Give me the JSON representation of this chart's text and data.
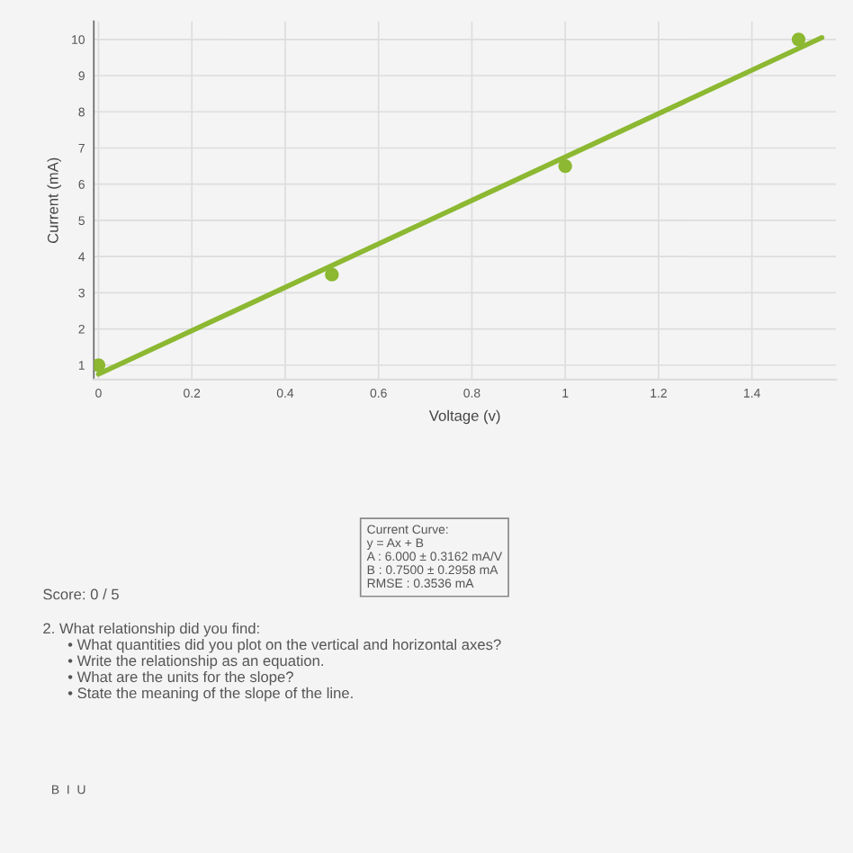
{
  "chart_data": {
    "type": "scatter",
    "xlabel": "Voltage (v)",
    "ylabel": "Current (mA)",
    "xlim": [
      -0.01,
      1.58
    ],
    "ylim": [
      0.6,
      10.5
    ],
    "xticks": [
      0,
      0.2,
      0.4,
      0.6,
      0.8,
      1,
      1.2,
      1.4
    ],
    "yticks": [
      1,
      2,
      3,
      4,
      5,
      6,
      7,
      8,
      9,
      10
    ],
    "grid": true,
    "marker": "circle",
    "series": [
      {
        "color": "#8cb832",
        "x": [
          0,
          0.5,
          1,
          1.5
        ],
        "values": [
          1,
          3.5,
          6.5,
          10
        ]
      },
      {
        "type": "line",
        "color": "#8cb832",
        "x": [
          0,
          1.55
        ],
        "values": [
          0.75,
          10.05
        ],
        "marker": "none",
        "line_style": "solid"
      }
    ],
    "annotations": [
      "Current Curve:\ny = Ax + B\nA : 6.000 ± 0.3162 mA/V\nB : 0.7500 ± 0.2958 mA\nRMSE : 0.3536 mA",
      "Score: 0 / 5",
      "2. What relationship did you find:\n      • What quantities did you plot on the vertical and horizontal axes?\n      • Write the relationship as an equation.\n      • What are the units for the slope?\n      • State the meaning of the slope of the line.",
      "B  I  U"
    ]
  }
}
